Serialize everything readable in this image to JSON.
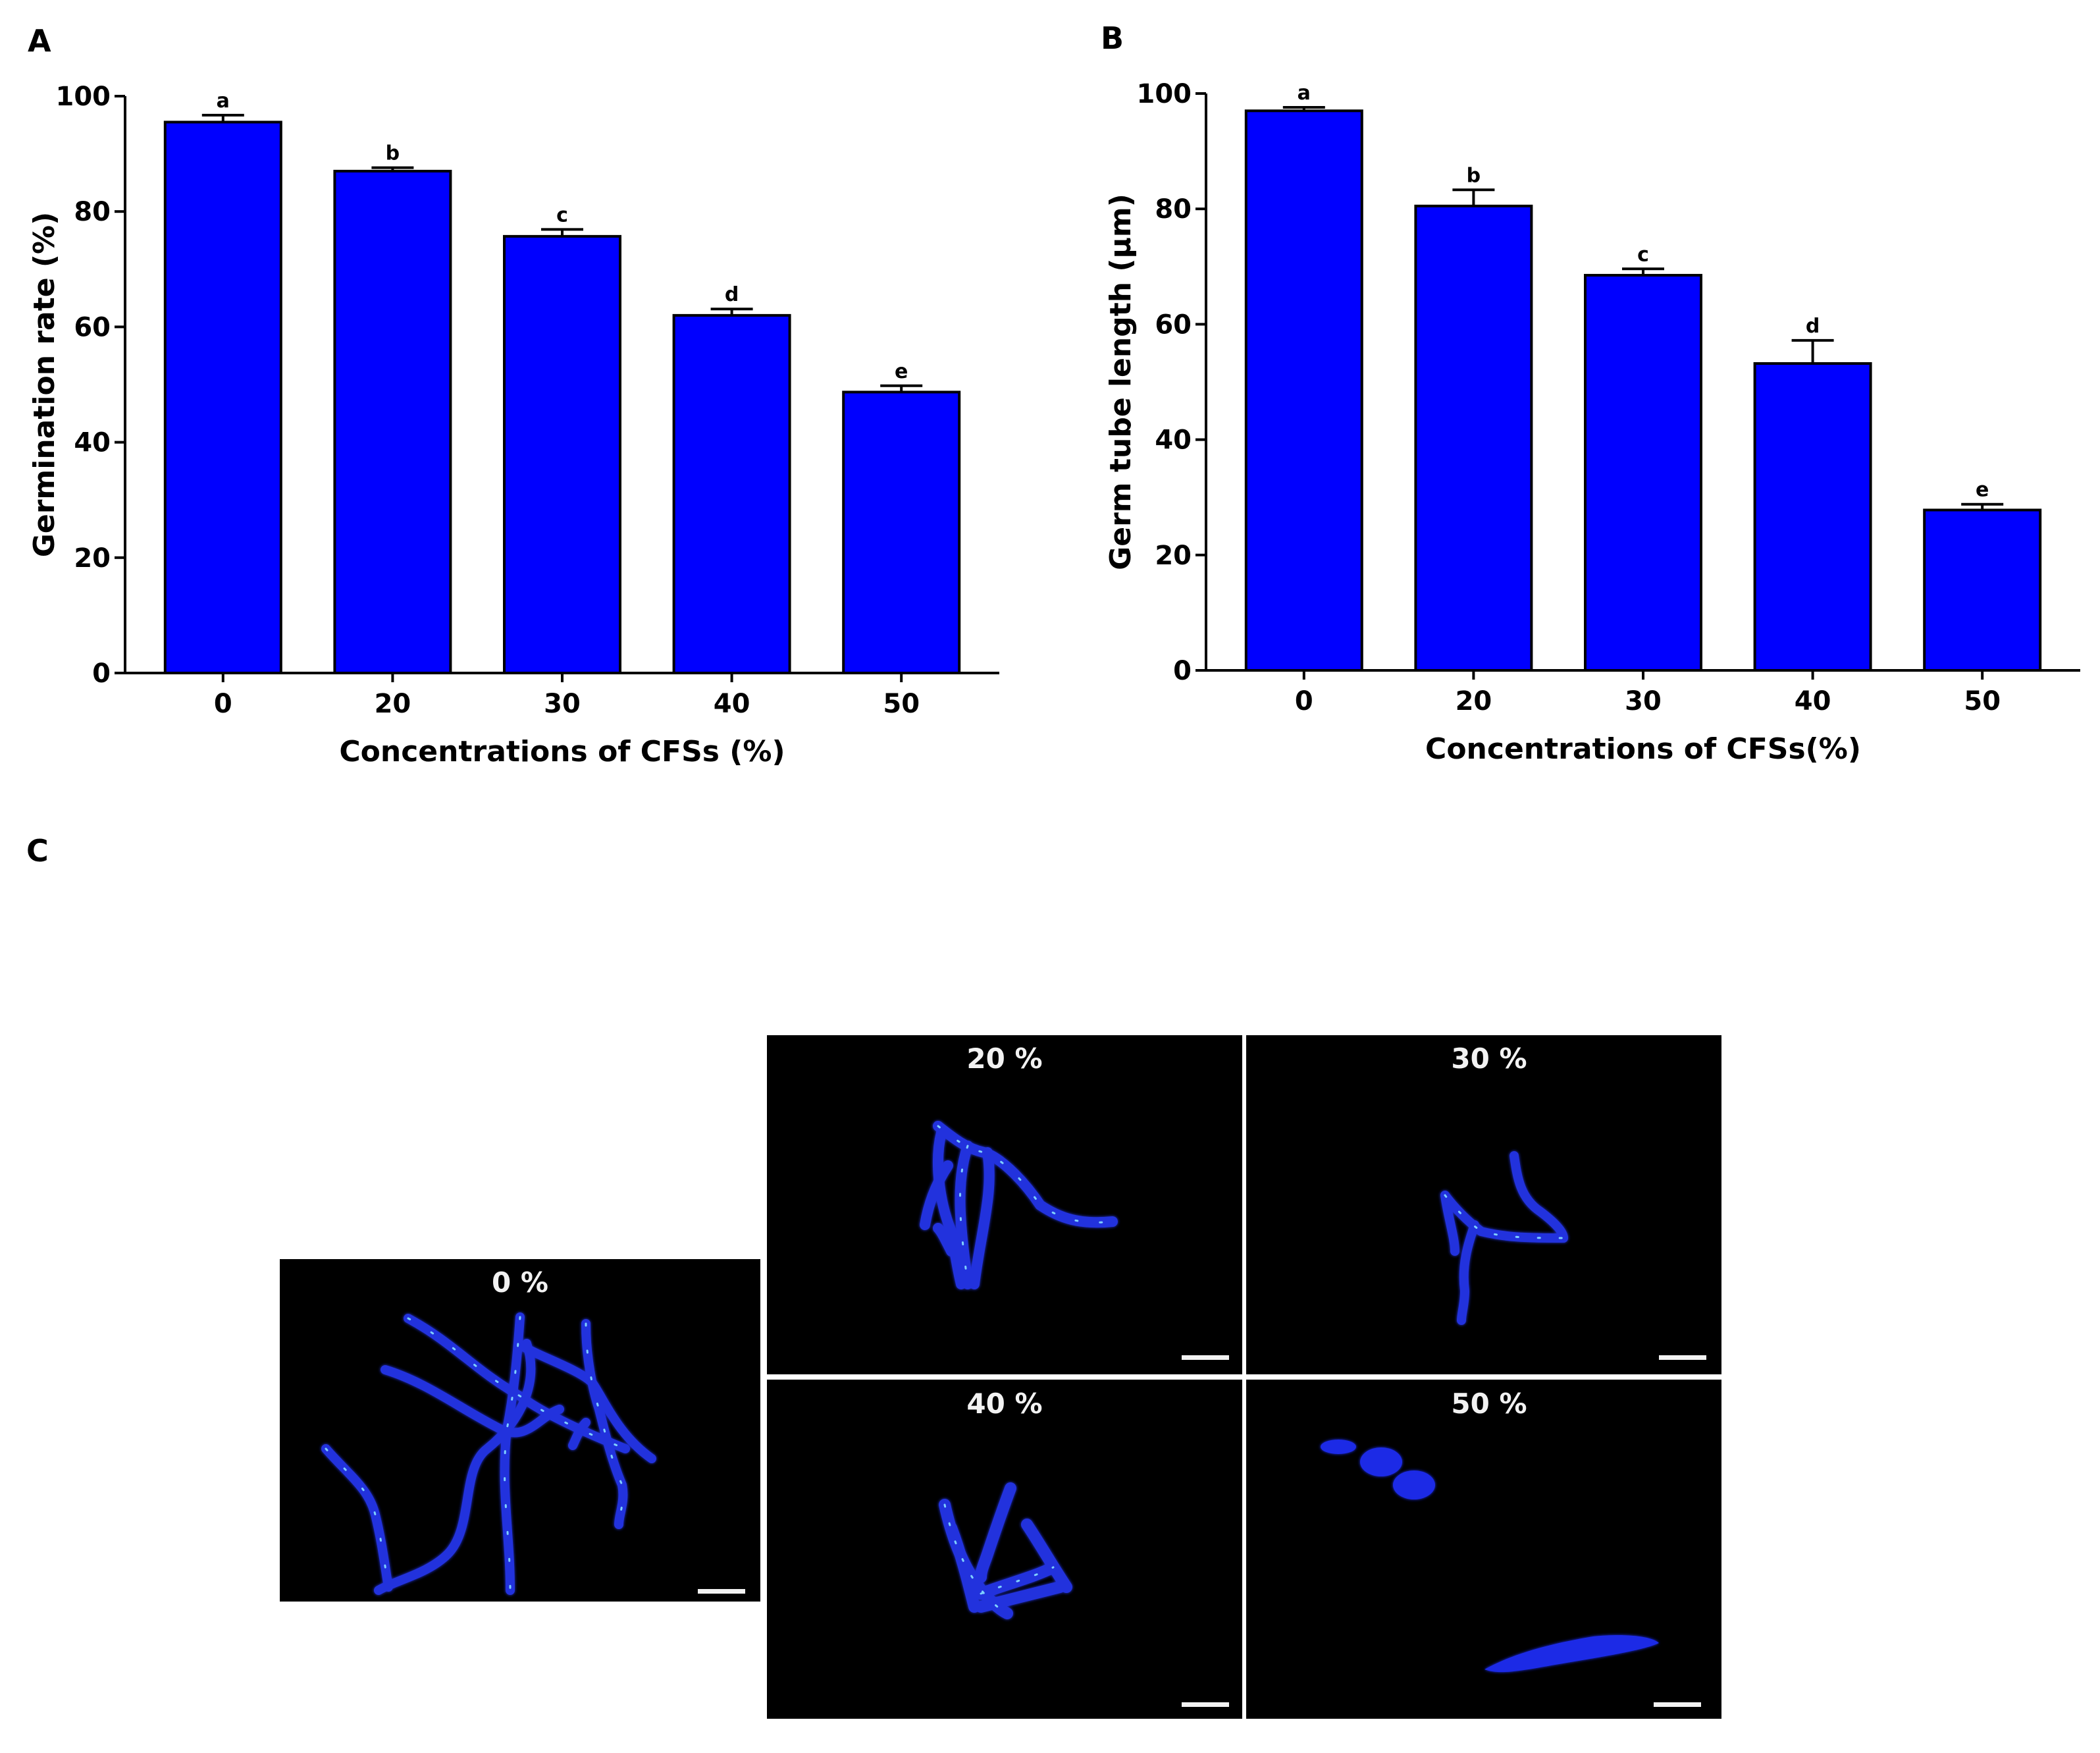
{
  "panels": {
    "a": "A",
    "b": "B",
    "c": "C"
  },
  "chart_data": [
    {
      "type": "bar",
      "panel": "A",
      "categories": [
        "0",
        "20",
        "30",
        "40",
        "50"
      ],
      "values": [
        95.5,
        87.0,
        75.7,
        62.0,
        48.7
      ],
      "errors": [
        1.2,
        0.6,
        1.2,
        1.1,
        1.1
      ],
      "significance": [
        "a",
        "b",
        "c",
        "d",
        "e"
      ],
      "title": "",
      "xlabel": "Concentrations of CFSs (%)",
      "ylabel": "Germination rate (%)",
      "ylim": [
        0,
        100
      ],
      "yticks": [
        0,
        20,
        40,
        60,
        80,
        100
      ],
      "grid": false,
      "color": "#0000ff"
    },
    {
      "type": "bar",
      "panel": "B",
      "categories": [
        "0",
        "20",
        "30",
        "40",
        "50"
      ],
      "values": [
        97.0,
        80.5,
        68.5,
        53.2,
        27.8
      ],
      "errors": [
        0.6,
        2.8,
        1.1,
        4.0,
        1.0
      ],
      "significance": [
        "a",
        "b",
        "c",
        "d",
        "e"
      ],
      "title": "",
      "xlabel": "Concentrations of CFSs(%)",
      "ylabel": "Germ tube length (μm)",
      "ylim": [
        0,
        100
      ],
      "yticks": [
        0,
        20,
        40,
        60,
        80,
        100
      ],
      "grid": false,
      "color": "#0000ff"
    }
  ],
  "micrographs": [
    {
      "label": "0 %"
    },
    {
      "label": "20 %"
    },
    {
      "label": "30 %"
    },
    {
      "label": "40 %"
    },
    {
      "label": "50 %"
    }
  ],
  "colors": {
    "bar": "#0000ff",
    "hyphae": "#1a2be6",
    "hyphae_highlight": "#7fd0ff",
    "micro_bg": "#000000"
  }
}
